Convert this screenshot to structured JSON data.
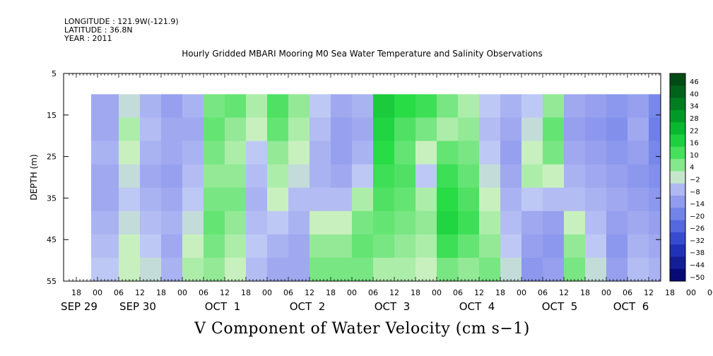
{
  "header": {
    "longitude": "LONGITUDE : 121.9W(-121.9)",
    "latitude": "LATITUDE : 36.8N",
    "year": "YEAR : 2011"
  },
  "chart_data": {
    "type": "heatmap",
    "title": "Hourly Gridded MBARI Mooring M0 Sea Water Temperature and Salinity Observations",
    "xlabel": "V Component of Water Velocity (cm s−1)",
    "ylabel": "DEPTH (m)",
    "ylim": [
      55,
      5
    ],
    "y_ticks": [
      "5",
      "15",
      "25",
      "35",
      "45",
      "55"
    ],
    "x_hour_ticks": [
      "18",
      "00",
      "06",
      "12",
      "18",
      "00",
      "06",
      "12",
      "18",
      "00",
      "06",
      "12",
      "18",
      "00",
      "06",
      "12",
      "18",
      "00",
      "06",
      "12",
      "18",
      "00",
      "06",
      "12",
      "18",
      "00",
      "06",
      "12",
      "18",
      "00",
      "06",
      "12"
    ],
    "x_day_labels": [
      "SEP 29",
      "SEP 30",
      "OCT  1",
      "OCT  2",
      "OCT  3",
      "OCT  4",
      "OCT  5",
      "OCT  6"
    ],
    "data_depth_range": [
      10,
      55
    ],
    "colorbar_labels": [
      "46",
      "40",
      "34",
      "28",
      "22",
      "16",
      "10",
      "4",
      "−2",
      "−8",
      "−14",
      "−20",
      "−26",
      "−32",
      "−38",
      "−44",
      "−50"
    ],
    "colorbar_range": [
      -50,
      52
    ],
    "colorscale": {
      "low": "#000066",
      "mid_negative": "#a0a8f0",
      "zero": "#c8f0c0",
      "mid_positive": "#20e040",
      "high": "#004010"
    },
    "columns": [
      {
        "hour": 0,
        "values": [
          -8,
          -8,
          -6,
          -8,
          -8,
          -6,
          -4,
          -2
        ]
      },
      {
        "hour": 6,
        "values": [
          0,
          4,
          2,
          0,
          -2,
          0,
          2,
          2
        ]
      },
      {
        "hour": 12,
        "values": [
          -6,
          -4,
          -6,
          -8,
          -6,
          -4,
          -2,
          0
        ]
      },
      {
        "hour": 18,
        "values": [
          -10,
          -8,
          -8,
          -10,
          -8,
          -6,
          -8,
          -6
        ]
      },
      {
        "hour": 24,
        "values": [
          -6,
          -8,
          -6,
          -4,
          -2,
          0,
          2,
          4
        ]
      },
      {
        "hour": 30,
        "values": [
          8,
          10,
          8,
          6,
          8,
          10,
          8,
          6
        ]
      },
      {
        "hour": 36,
        "values": [
          10,
          6,
          4,
          6,
          8,
          6,
          4,
          2
        ]
      },
      {
        "hour": 42,
        "values": [
          4,
          2,
          -2,
          -4,
          -6,
          -4,
          -2,
          -4
        ]
      },
      {
        "hour": 48,
        "values": [
          12,
          10,
          6,
          4,
          2,
          -2,
          -6,
          -8
        ]
      },
      {
        "hour": 54,
        "values": [
          6,
          4,
          2,
          0,
          -4,
          -6,
          -8,
          -8
        ]
      },
      {
        "hour": 60,
        "values": [
          -2,
          -4,
          -6,
          -6,
          -4,
          2,
          6,
          8
        ]
      },
      {
        "hour": 66,
        "values": [
          -8,
          -10,
          -10,
          -8,
          -4,
          2,
          6,
          8
        ]
      },
      {
        "hour": 72,
        "values": [
          -6,
          -8,
          -6,
          -2,
          4,
          8,
          10,
          8
        ]
      },
      {
        "hour": 78,
        "values": [
          20,
          18,
          16,
          14,
          12,
          10,
          8,
          4
        ]
      },
      {
        "hour": 84,
        "values": [
          16,
          12,
          10,
          12,
          10,
          8,
          6,
          4
        ]
      },
      {
        "hour": 90,
        "values": [
          14,
          8,
          2,
          -2,
          4,
          6,
          4,
          2
        ]
      },
      {
        "hour": 96,
        "values": [
          8,
          4,
          10,
          14,
          16,
          18,
          14,
          8
        ]
      },
      {
        "hour": 102,
        "values": [
          4,
          6,
          8,
          10,
          12,
          14,
          10,
          6
        ]
      },
      {
        "hour": 108,
        "values": [
          -2,
          -4,
          -2,
          0,
          2,
          4,
          6,
          8
        ]
      },
      {
        "hour": 114,
        "values": [
          -6,
          -8,
          -10,
          -8,
          -6,
          -4,
          -2,
          0
        ]
      },
      {
        "hour": 120,
        "values": [
          -2,
          0,
          2,
          4,
          -2,
          -8,
          -10,
          -12
        ]
      },
      {
        "hour": 126,
        "values": [
          6,
          10,
          8,
          2,
          -4,
          -10,
          -12,
          -10
        ]
      },
      {
        "hour": 132,
        "values": [
          -8,
          -10,
          -8,
          -6,
          -4,
          2,
          6,
          8
        ]
      },
      {
        "hour": 138,
        "values": [
          -10,
          -12,
          -10,
          -8,
          -6,
          -4,
          -2,
          0
        ]
      },
      {
        "hour": 144,
        "values": [
          -12,
          -14,
          -12,
          -10,
          -8,
          -10,
          -12,
          -10
        ]
      },
      {
        "hour": 150,
        "values": [
          -10,
          -8,
          -10,
          -12,
          -10,
          -8,
          -6,
          -4
        ]
      },
      {
        "hour": 156,
        "values": [
          -16,
          -18,
          -16,
          -14,
          -12,
          -10,
          -8,
          -6
        ]
      },
      {
        "hour": 162,
        "values": [
          -14,
          -16,
          -14,
          -12,
          -14,
          -12,
          -10,
          -8
        ]
      },
      {
        "hour": 168,
        "values": [
          -12,
          -14,
          -16,
          -14,
          -12,
          -10,
          -12,
          -10
        ]
      },
      {
        "hour": 174,
        "values": [
          -8,
          -10,
          -14,
          -16,
          -14,
          -10,
          -6,
          -2
        ]
      },
      {
        "hour": 180,
        "values": [
          -6,
          -12,
          -18,
          -20,
          -16,
          -10,
          -4,
          2
        ]
      }
    ]
  }
}
